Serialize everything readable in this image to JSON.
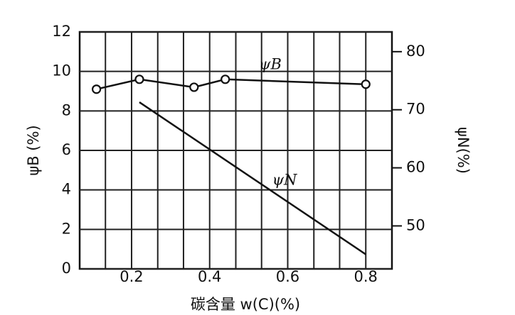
{
  "chart_data": {
    "type": "line",
    "x_label": "碳含量 w(C)(%)",
    "y_label": "ψB (%)",
    "y2_label": "ψN(%)",
    "xlim": [
      0.067,
      0.867
    ],
    "xticks": [
      0.2,
      0.4,
      0.6,
      0.8
    ],
    "x_minor_grid": [
      0.133,
      0.267,
      0.333,
      0.467,
      0.533,
      0.667,
      0.733
    ],
    "ylim": [
      0,
      12
    ],
    "yticks": [
      0,
      2,
      4,
      6,
      8,
      10,
      12
    ],
    "y2lim": [
      42.6,
      83.4
    ],
    "y2ticks": [
      50,
      60,
      70,
      80
    ],
    "grid": true,
    "series": [
      {
        "name": "ψB",
        "color": "#111111",
        "markers": true,
        "x": [
          0.11,
          0.22,
          0.36,
          0.44,
          0.8
        ],
        "values": [
          9.1,
          9.6,
          9.2,
          9.6,
          9.35
        ]
      },
      {
        "name": "ψN",
        "color": "#111111",
        "markers": false,
        "axis": "y2",
        "x": [
          0.22,
          0.8
        ],
        "values": [
          71.3,
          45.1
        ]
      }
    ]
  }
}
